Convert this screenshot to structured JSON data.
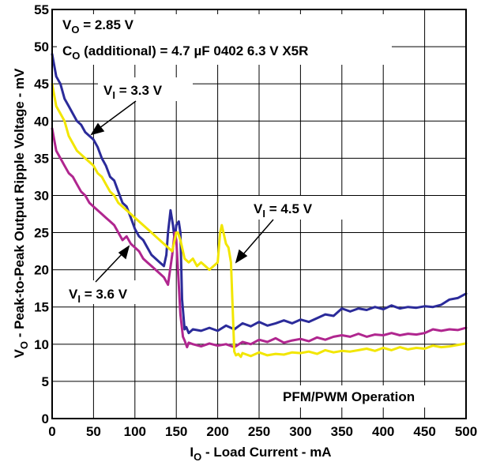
{
  "chart_data": {
    "type": "line",
    "xlabel": {
      "main": "I",
      "sub": "O",
      "rest": " - Load Current - mA"
    },
    "ylabel": {
      "main": "V",
      "sub": "O",
      "rest": " - Peak-to-Peak Output Ripple Voltage - mV"
    },
    "xlim": [
      0,
      500
    ],
    "ylim": [
      0,
      55
    ],
    "x_ticks": [
      0,
      50,
      100,
      150,
      200,
      250,
      300,
      350,
      400,
      450,
      500
    ],
    "y_ticks": [
      0,
      5,
      10,
      15,
      20,
      25,
      30,
      35,
      40,
      45,
      50,
      55
    ],
    "grid": true,
    "annotations": {
      "vo": {
        "main": "V",
        "sub": "O",
        "rest": " = 2.85 V"
      },
      "co": {
        "main": "C",
        "sub": "O",
        "rest": " (additional) = 4.7 µF 0402 6.3 V X5R"
      },
      "mode": "PFM/PWM Operation"
    },
    "series": [
      {
        "name": "V_I = 3.3 V",
        "label": {
          "main": "V",
          "sub": "I",
          "rest": " = 3.3 V"
        },
        "color": "#2b2b9a",
        "x": [
          0,
          5,
          10,
          15,
          20,
          25,
          30,
          35,
          40,
          45,
          50,
          55,
          60,
          65,
          70,
          75,
          80,
          85,
          90,
          95,
          100,
          105,
          110,
          115,
          120,
          125,
          130,
          135,
          138,
          140,
          143,
          146,
          148,
          150,
          153,
          155,
          157,
          160,
          162,
          165,
          170,
          180,
          190,
          200,
          210,
          220,
          230,
          240,
          250,
          260,
          270,
          280,
          290,
          300,
          310,
          320,
          330,
          340,
          350,
          360,
          370,
          380,
          390,
          400,
          410,
          420,
          430,
          440,
          450,
          460,
          470,
          480,
          490,
          500
        ],
        "y": [
          49,
          46,
          45,
          43,
          42,
          41,
          40,
          39.5,
          38.5,
          38,
          37.5,
          36.5,
          35,
          34,
          32.5,
          32,
          30.5,
          29,
          28.5,
          27,
          25.5,
          24.5,
          24,
          23,
          22,
          21.5,
          21,
          20.5,
          22,
          25,
          28,
          26,
          24,
          26,
          26.5,
          25,
          16,
          12,
          12.3,
          11.5,
          12,
          11.8,
          12.2,
          11.8,
          12.5,
          12,
          12.8,
          12.4,
          13,
          12.5,
          12.8,
          13.2,
          12.8,
          13.3,
          13,
          13.5,
          14,
          13.8,
          14.8,
          14.4,
          14.8,
          14.6,
          15,
          14.7,
          15.2,
          14.8,
          15,
          14.9,
          15.1,
          15,
          15.3,
          16,
          16.2,
          16.8
        ]
      },
      {
        "name": "V_I = 3.6 V",
        "label": {
          "main": "V",
          "sub": "I",
          "rest": " = 3.6 V"
        },
        "color": "#b0268f",
        "x": [
          0,
          5,
          10,
          15,
          20,
          25,
          30,
          35,
          40,
          45,
          50,
          55,
          60,
          65,
          70,
          75,
          80,
          85,
          90,
          95,
          100,
          105,
          110,
          115,
          120,
          125,
          130,
          135,
          140,
          145,
          148,
          150,
          152,
          155,
          158,
          160,
          163,
          165,
          170,
          180,
          190,
          200,
          210,
          220,
          230,
          240,
          250,
          260,
          270,
          280,
          290,
          300,
          310,
          320,
          330,
          340,
          350,
          360,
          370,
          380,
          390,
          400,
          410,
          420,
          430,
          440,
          450,
          460,
          470,
          480,
          490,
          500
        ],
        "y": [
          39,
          36,
          35,
          34,
          33,
          32.5,
          31.5,
          30.5,
          30,
          29,
          28.5,
          28,
          27.5,
          27,
          26.5,
          26,
          25,
          24,
          24.5,
          23.5,
          23,
          22.5,
          21.5,
          21,
          20.5,
          20,
          19.5,
          19,
          18,
          22,
          25,
          24,
          20,
          14,
          11,
          10.5,
          9.6,
          10.2,
          10,
          9.7,
          10.1,
          9.8,
          10,
          9.6,
          10.3,
          10,
          10.6,
          10.3,
          10.8,
          10.2,
          10.5,
          10.7,
          10.4,
          10.9,
          10.6,
          11,
          11.2,
          11,
          11.4,
          11,
          11.3,
          11.2,
          11.5,
          11.2,
          11.4,
          11.3,
          11.5,
          12,
          11.8,
          12,
          11.9,
          12.2
        ]
      },
      {
        "name": "V_I = 4.5 V",
        "label": {
          "main": "V",
          "sub": "I",
          "rest": " = 4.5 V"
        },
        "color": "#f2e600",
        "x": [
          0,
          5,
          10,
          15,
          20,
          25,
          30,
          35,
          40,
          45,
          50,
          55,
          60,
          65,
          70,
          75,
          80,
          85,
          90,
          95,
          100,
          105,
          110,
          115,
          120,
          125,
          130,
          135,
          140,
          145,
          150,
          152,
          155,
          160,
          165,
          170,
          175,
          180,
          185,
          190,
          195,
          200,
          203,
          205,
          208,
          210,
          213,
          216,
          218,
          220,
          222,
          225,
          228,
          230,
          240,
          250,
          260,
          270,
          280,
          290,
          300,
          310,
          320,
          330,
          340,
          350,
          360,
          370,
          380,
          390,
          400,
          410,
          420,
          430,
          440,
          450,
          460,
          470,
          480,
          490,
          500
        ],
        "y": [
          45,
          42,
          41,
          40,
          38,
          37,
          36,
          35.5,
          35,
          34.5,
          34,
          33,
          32.5,
          31.5,
          30.5,
          30,
          29,
          28.5,
          28,
          27.5,
          27,
          26.5,
          26,
          25.5,
          25,
          24.5,
          24,
          23.5,
          23,
          22.5,
          25,
          25,
          24,
          21.5,
          21,
          21.5,
          20.5,
          21,
          20.5,
          20,
          20.5,
          21,
          25,
          26,
          24.5,
          23.5,
          23,
          21,
          15,
          9,
          8.5,
          8.7,
          8.3,
          8.8,
          8.4,
          8.9,
          8.5,
          8.7,
          8.6,
          8.9,
          8.8,
          9,
          8.7,
          9.2,
          8.9,
          9.1,
          9,
          9.2,
          9.4,
          9.1,
          9.5,
          9.2,
          9.6,
          9.3,
          9.5,
          9.4,
          9.8,
          9.6,
          9.7,
          9.9,
          10.1
        ]
      }
    ]
  }
}
